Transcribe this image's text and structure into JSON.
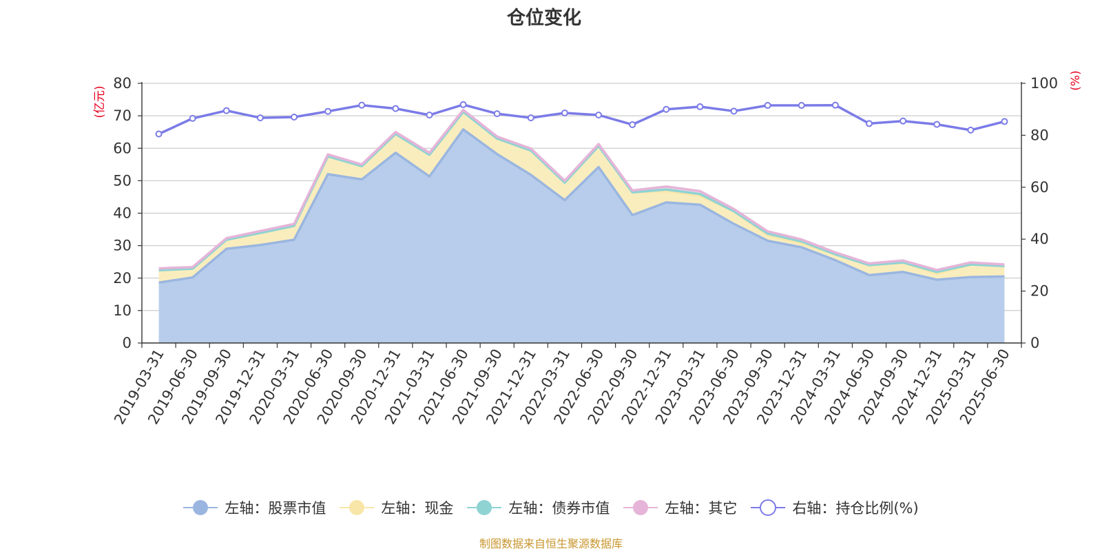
{
  "chart_data": {
    "type": "area",
    "title": "仓位变化",
    "y_left_unit": "(亿元)",
    "y_right_unit": "(%)",
    "y_left_lim": [
      0,
      80
    ],
    "y_left_ticks": [
      0,
      10,
      20,
      30,
      40,
      50,
      60,
      70,
      80
    ],
    "y_right_lim": [
      0,
      100
    ],
    "y_right_ticks": [
      0,
      20,
      40,
      60,
      80,
      100
    ],
    "grid": true,
    "legend_position": "bottom",
    "stacked": true,
    "categories": [
      "2019-03-31",
      "2019-06-30",
      "2019-09-30",
      "2019-12-31",
      "2020-03-31",
      "2020-06-30",
      "2020-09-30",
      "2020-12-31",
      "2021-03-31",
      "2021-06-30",
      "2021-09-30",
      "2021-12-31",
      "2022-03-31",
      "2022-06-30",
      "2022-09-30",
      "2022-12-31",
      "2023-03-31",
      "2023-06-30",
      "2023-09-30",
      "2023-12-31",
      "2024-03-31",
      "2024-06-30",
      "2024-09-30",
      "2024-12-31",
      "2025-03-31",
      "2025-06-30"
    ],
    "series": [
      {
        "name": "左轴：股票市值",
        "axis": "left",
        "color": "#9ab6e0",
        "fill": "#b8cdeb",
        "values": [
          18.6,
          20.2,
          29.0,
          30.2,
          31.8,
          52.0,
          50.4,
          58.6,
          51.3,
          65.8,
          58.2,
          51.8,
          44.0,
          54.2,
          39.4,
          43.3,
          42.6,
          36.7,
          31.5,
          29.5,
          25.5,
          20.9,
          21.9,
          19.5,
          20.3,
          20.5
        ]
      },
      {
        "name": "左轴：现金",
        "axis": "left",
        "color": "#f8e6a8",
        "fill": "#faedbd",
        "values": [
          3.8,
          2.7,
          2.8,
          3.7,
          4.3,
          5.5,
          4.1,
          5.8,
          6.7,
          5.4,
          4.8,
          7.5,
          5.4,
          6.5,
          7.0,
          3.5,
          2.8,
          3.9,
          1.7,
          1.2,
          1.8,
          3.1,
          2.9,
          1.9,
          3.9,
          3.2
        ]
      },
      {
        "name": "左轴：债券市值",
        "axis": "left",
        "color": "#8fd3d3",
        "fill": "#c6ecec",
        "values": [
          0,
          0,
          0,
          0,
          0,
          0,
          0,
          0,
          0,
          0,
          0,
          0,
          0,
          0,
          0,
          0.5,
          0.5,
          0,
          0.5,
          0.6,
          0,
          0,
          0,
          0.5,
          0,
          0
        ]
      },
      {
        "name": "左轴：其它",
        "axis": "left",
        "color": "#e6b4d8",
        "fill": "#f3dbea",
        "values": [
          0.6,
          0.5,
          0.5,
          0.6,
          0.6,
          0.6,
          0.5,
          0.6,
          0.6,
          0.6,
          0.6,
          0.6,
          0.6,
          0.6,
          0.6,
          0.9,
          0.9,
          0.7,
          0.7,
          0.6,
          0.6,
          0.5,
          0.6,
          0.6,
          0.6,
          0.5
        ]
      },
      {
        "name": "右轴：持仓比例(%)",
        "axis": "right",
        "type": "line",
        "color": "#7b7be8",
        "values": [
          80.5,
          86.5,
          89.5,
          86.7,
          87.0,
          89.2,
          91.6,
          90.3,
          87.8,
          91.8,
          88.3,
          86.7,
          88.6,
          87.8,
          84.1,
          90.0,
          91.0,
          89.3,
          91.5,
          91.5,
          91.6,
          84.5,
          85.5,
          84.2,
          82.0,
          85.3
        ]
      }
    ]
  },
  "source_note": "制图数据来自恒生聚源数据库"
}
